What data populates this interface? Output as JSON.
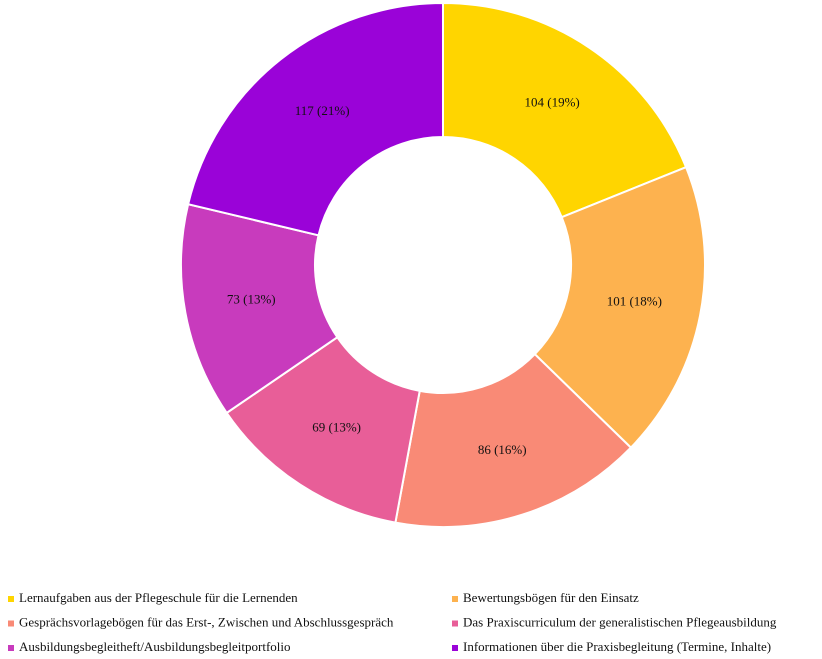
{
  "chart_data": {
    "type": "donut",
    "categories": [
      "Lernaufgaben aus der Pflegeschule für die Lernenden",
      "Bewertungsbögen für den Einsatz",
      "Gesprächsvorlagebögen für das Erst-, Zwischen und Abschlussgespräch",
      "Das Praxiscurriculum der generalistischen Pflegeausbildung",
      "Ausbildungsbegleitheft/Ausbildungsbegleitportfolio",
      "Informationen über die Praxisbegleitung (Termine, Inhalte)"
    ],
    "values": [
      104,
      101,
      86,
      69,
      73,
      117
    ],
    "value_labels": [
      "104 (19%)",
      "101 (18%)",
      "86 (16%)",
      "69 (13%)",
      "73 (13%)",
      "117 (21%)"
    ],
    "colors": [
      "#ffd500",
      "#fdb24f",
      "#f98a76",
      "#e85e98",
      "#c83bbd",
      "#9a03d8"
    ],
    "legend": "bottom"
  }
}
